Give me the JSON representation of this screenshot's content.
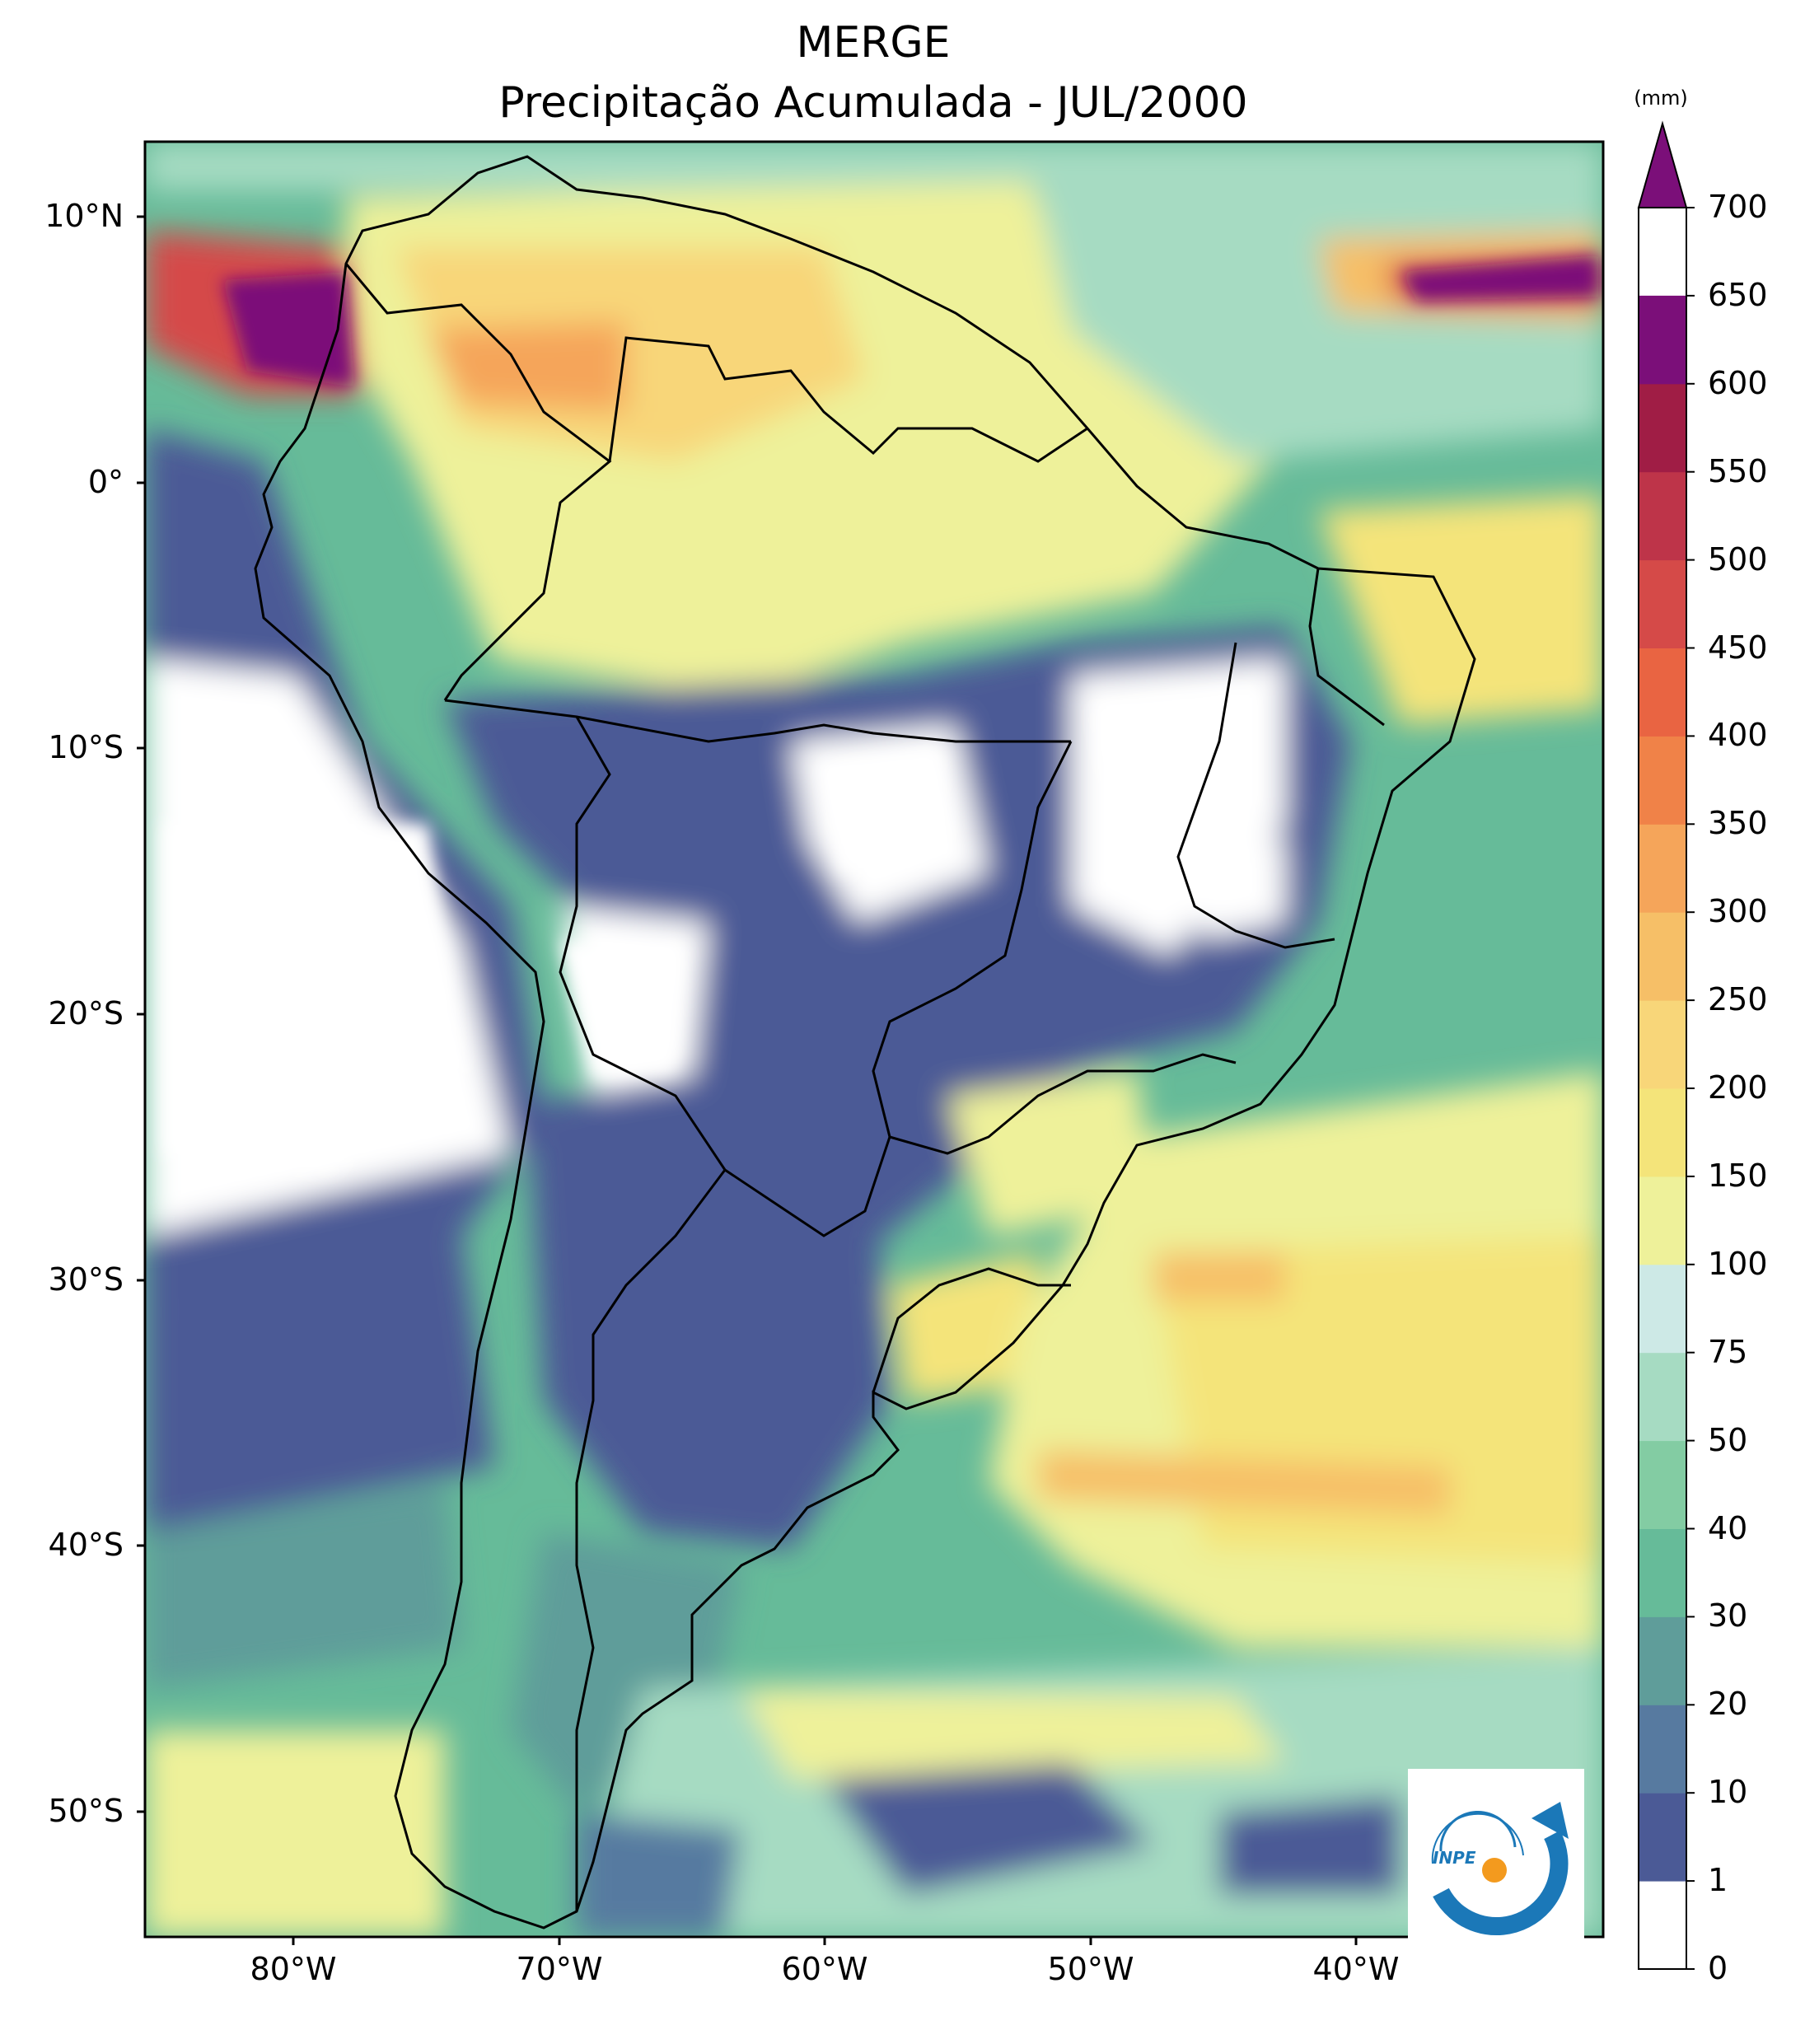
{
  "title": "MERGE",
  "subtitle": "Precipitação Acumulada - JUL/2000",
  "unit": "(mm)",
  "latitude_labels": [
    "10°N",
    "0°",
    "10°S",
    "20°S",
    "30°S",
    "40°S",
    "50°S"
  ],
  "longitude_labels": [
    "80°W",
    "70°W",
    "60°W",
    "50°W",
    "40°W"
  ],
  "colorbar": {
    "levels": [
      "0",
      "1",
      "10",
      "20",
      "30",
      "40",
      "50",
      "75",
      "100",
      "150",
      "200",
      "250",
      "300",
      "350",
      "400",
      "450",
      "500",
      "550",
      "600",
      "650",
      "700"
    ],
    "colors": [
      "#ffffff",
      "#4b5a96",
      "#577aa0",
      "#5f9d9a",
      "#66bb99",
      "#83cca3",
      "#a6dbc2",
      "#cde9e6",
      "#eef19a",
      "#f4e47a",
      "#f8d679",
      "#f6bf67",
      "#f5a55a",
      "#f08248",
      "#e96442",
      "#d54a48",
      "#be3449",
      "#a01d45",
      "#7b0f79"
    ]
  },
  "logo_text": "INPE",
  "map_colors": {
    "ocean_dry": "#4b5a96",
    "ocean_mid": "#66bb99",
    "ocean_wet": "#eef19a",
    "very_wet": "#d54a48",
    "extreme": "#7b0f79",
    "land_dry": "#ffffff",
    "border": "#000000"
  }
}
